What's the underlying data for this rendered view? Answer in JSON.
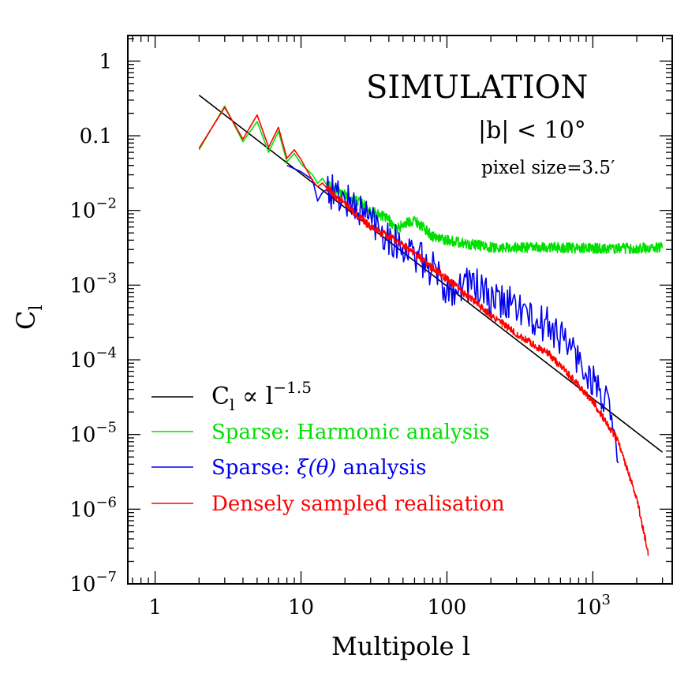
{
  "chart_data": {
    "type": "line",
    "xlabel": "Multipole l",
    "ylabel": {
      "main": "C",
      "sub": "l"
    },
    "x_scale": "log",
    "y_scale": "log",
    "xlim": [
      0.65,
      3500
    ],
    "ylim": [
      1e-07,
      2.2
    ],
    "x_tick_labels": [
      {
        "value": 1,
        "text": "1"
      },
      {
        "value": 10,
        "text": "10"
      },
      {
        "value": 100,
        "text": "100"
      },
      {
        "value": 1000,
        "base": "10",
        "exp": "3"
      }
    ],
    "y_tick_labels": [
      {
        "value": 1,
        "text": "1"
      },
      {
        "value": 0.1,
        "text": "0.1"
      },
      {
        "value": 0.01,
        "base": "10",
        "exp": "−2"
      },
      {
        "value": 0.001,
        "base": "10",
        "exp": "−3"
      },
      {
        "value": 0.0001,
        "base": "10",
        "exp": "−4"
      },
      {
        "value": 1e-05,
        "base": "10",
        "exp": "−5"
      },
      {
        "value": 1e-06,
        "base": "10",
        "exp": "−6"
      },
      {
        "value": 1e-07,
        "base": "10",
        "exp": "−7"
      }
    ],
    "annotations": {
      "title": "SIMULATION",
      "latitude_cut": "|b| < 10°",
      "pixel_size": "pixel size=3.5′"
    },
    "legend_position": "bottom-left",
    "series": [
      {
        "key": "powerlaw",
        "legend": {
          "parts": [
            [
              "C",
              ""
            ],
            [
              "l",
              "sub"
            ],
            [
              " ∝ l",
              ""
            ],
            [
              "−1.5",
              "sup"
            ]
          ]
        },
        "color": "#000000",
        "style": "smooth",
        "points": [
          [
            2,
            0.35
          ],
          [
            3000,
            5.8e-06
          ]
        ]
      },
      {
        "key": "harmonic",
        "legend": {
          "text": "Sparse: Harmonic analysis"
        },
        "color": "#00e000",
        "style": "noisy",
        "points": [
          [
            2,
            0.065
          ],
          [
            3,
            0.25
          ],
          [
            4,
            0.083
          ],
          [
            5,
            0.155
          ],
          [
            6,
            0.06
          ],
          [
            7,
            0.115
          ],
          [
            8,
            0.045
          ],
          [
            9,
            0.058
          ],
          [
            10,
            0.042
          ],
          [
            12,
            0.03
          ],
          [
            15,
            0.022
          ],
          [
            20,
            0.016
          ],
          [
            25,
            0.013
          ],
          [
            30,
            0.01
          ],
          [
            40,
            0.0075
          ],
          [
            45,
            0.0055
          ],
          [
            50,
            0.0065
          ],
          [
            60,
            0.0075
          ],
          [
            80,
            0.0045
          ],
          [
            100,
            0.004
          ],
          [
            150,
            0.0035
          ],
          [
            200,
            0.0032
          ],
          [
            300,
            0.0032
          ],
          [
            500,
            0.0032
          ],
          [
            1000,
            0.0031
          ],
          [
            2000,
            0.0031
          ],
          [
            3000,
            0.0032
          ]
        ],
        "noise_dex": 0.07
      },
      {
        "key": "xi",
        "legend": {
          "parts": [
            [
              "Sparse: ",
              ""
            ],
            [
              "ξ(θ)",
              "italic"
            ],
            [
              " analysis",
              ""
            ]
          ]
        },
        "color": "#0000ee",
        "style": "noisy",
        "points": [
          [
            8,
            0.04
          ],
          [
            10,
            0.033
          ],
          [
            15,
            0.019
          ],
          [
            20,
            0.014
          ],
          [
            30,
            0.008
          ],
          [
            40,
            0.0045
          ],
          [
            60,
            0.0025
          ],
          [
            80,
            0.0016
          ],
          [
            100,
            0.0009
          ],
          [
            150,
            0.0011
          ],
          [
            200,
            0.0006
          ],
          [
            300,
            0.00055
          ],
          [
            400,
            0.0003
          ],
          [
            500,
            0.0003
          ],
          [
            700,
            0.00015
          ],
          [
            900,
            7e-05
          ],
          [
            1100,
            4e-05
          ],
          [
            1300,
            2e-05
          ],
          [
            1500,
            4e-06
          ]
        ],
        "noise_dex": 0.25
      },
      {
        "key": "dense",
        "legend": {
          "text": "Densely sampled realisation"
        },
        "color": "#ff0000",
        "style": "noisy",
        "points": [
          [
            2,
            0.068
          ],
          [
            3,
            0.24
          ],
          [
            4,
            0.09
          ],
          [
            5,
            0.19
          ],
          [
            6,
            0.07
          ],
          [
            7,
            0.13
          ],
          [
            8,
            0.05
          ],
          [
            9,
            0.065
          ],
          [
            10,
            0.048
          ],
          [
            12,
            0.025
          ],
          [
            15,
            0.02
          ],
          [
            20,
            0.012
          ],
          [
            30,
            0.006
          ],
          [
            50,
            0.0035
          ],
          [
            100,
            0.0012
          ],
          [
            200,
            0.0004
          ],
          [
            300,
            0.00022
          ],
          [
            500,
            0.00012
          ],
          [
            700,
            6e-05
          ],
          [
            1000,
            2.8e-05
          ],
          [
            1500,
            8e-06
          ],
          [
            2000,
            1.4e-06
          ],
          [
            2400,
            2.5e-07
          ]
        ],
        "noise_dex": 0.05
      }
    ]
  }
}
